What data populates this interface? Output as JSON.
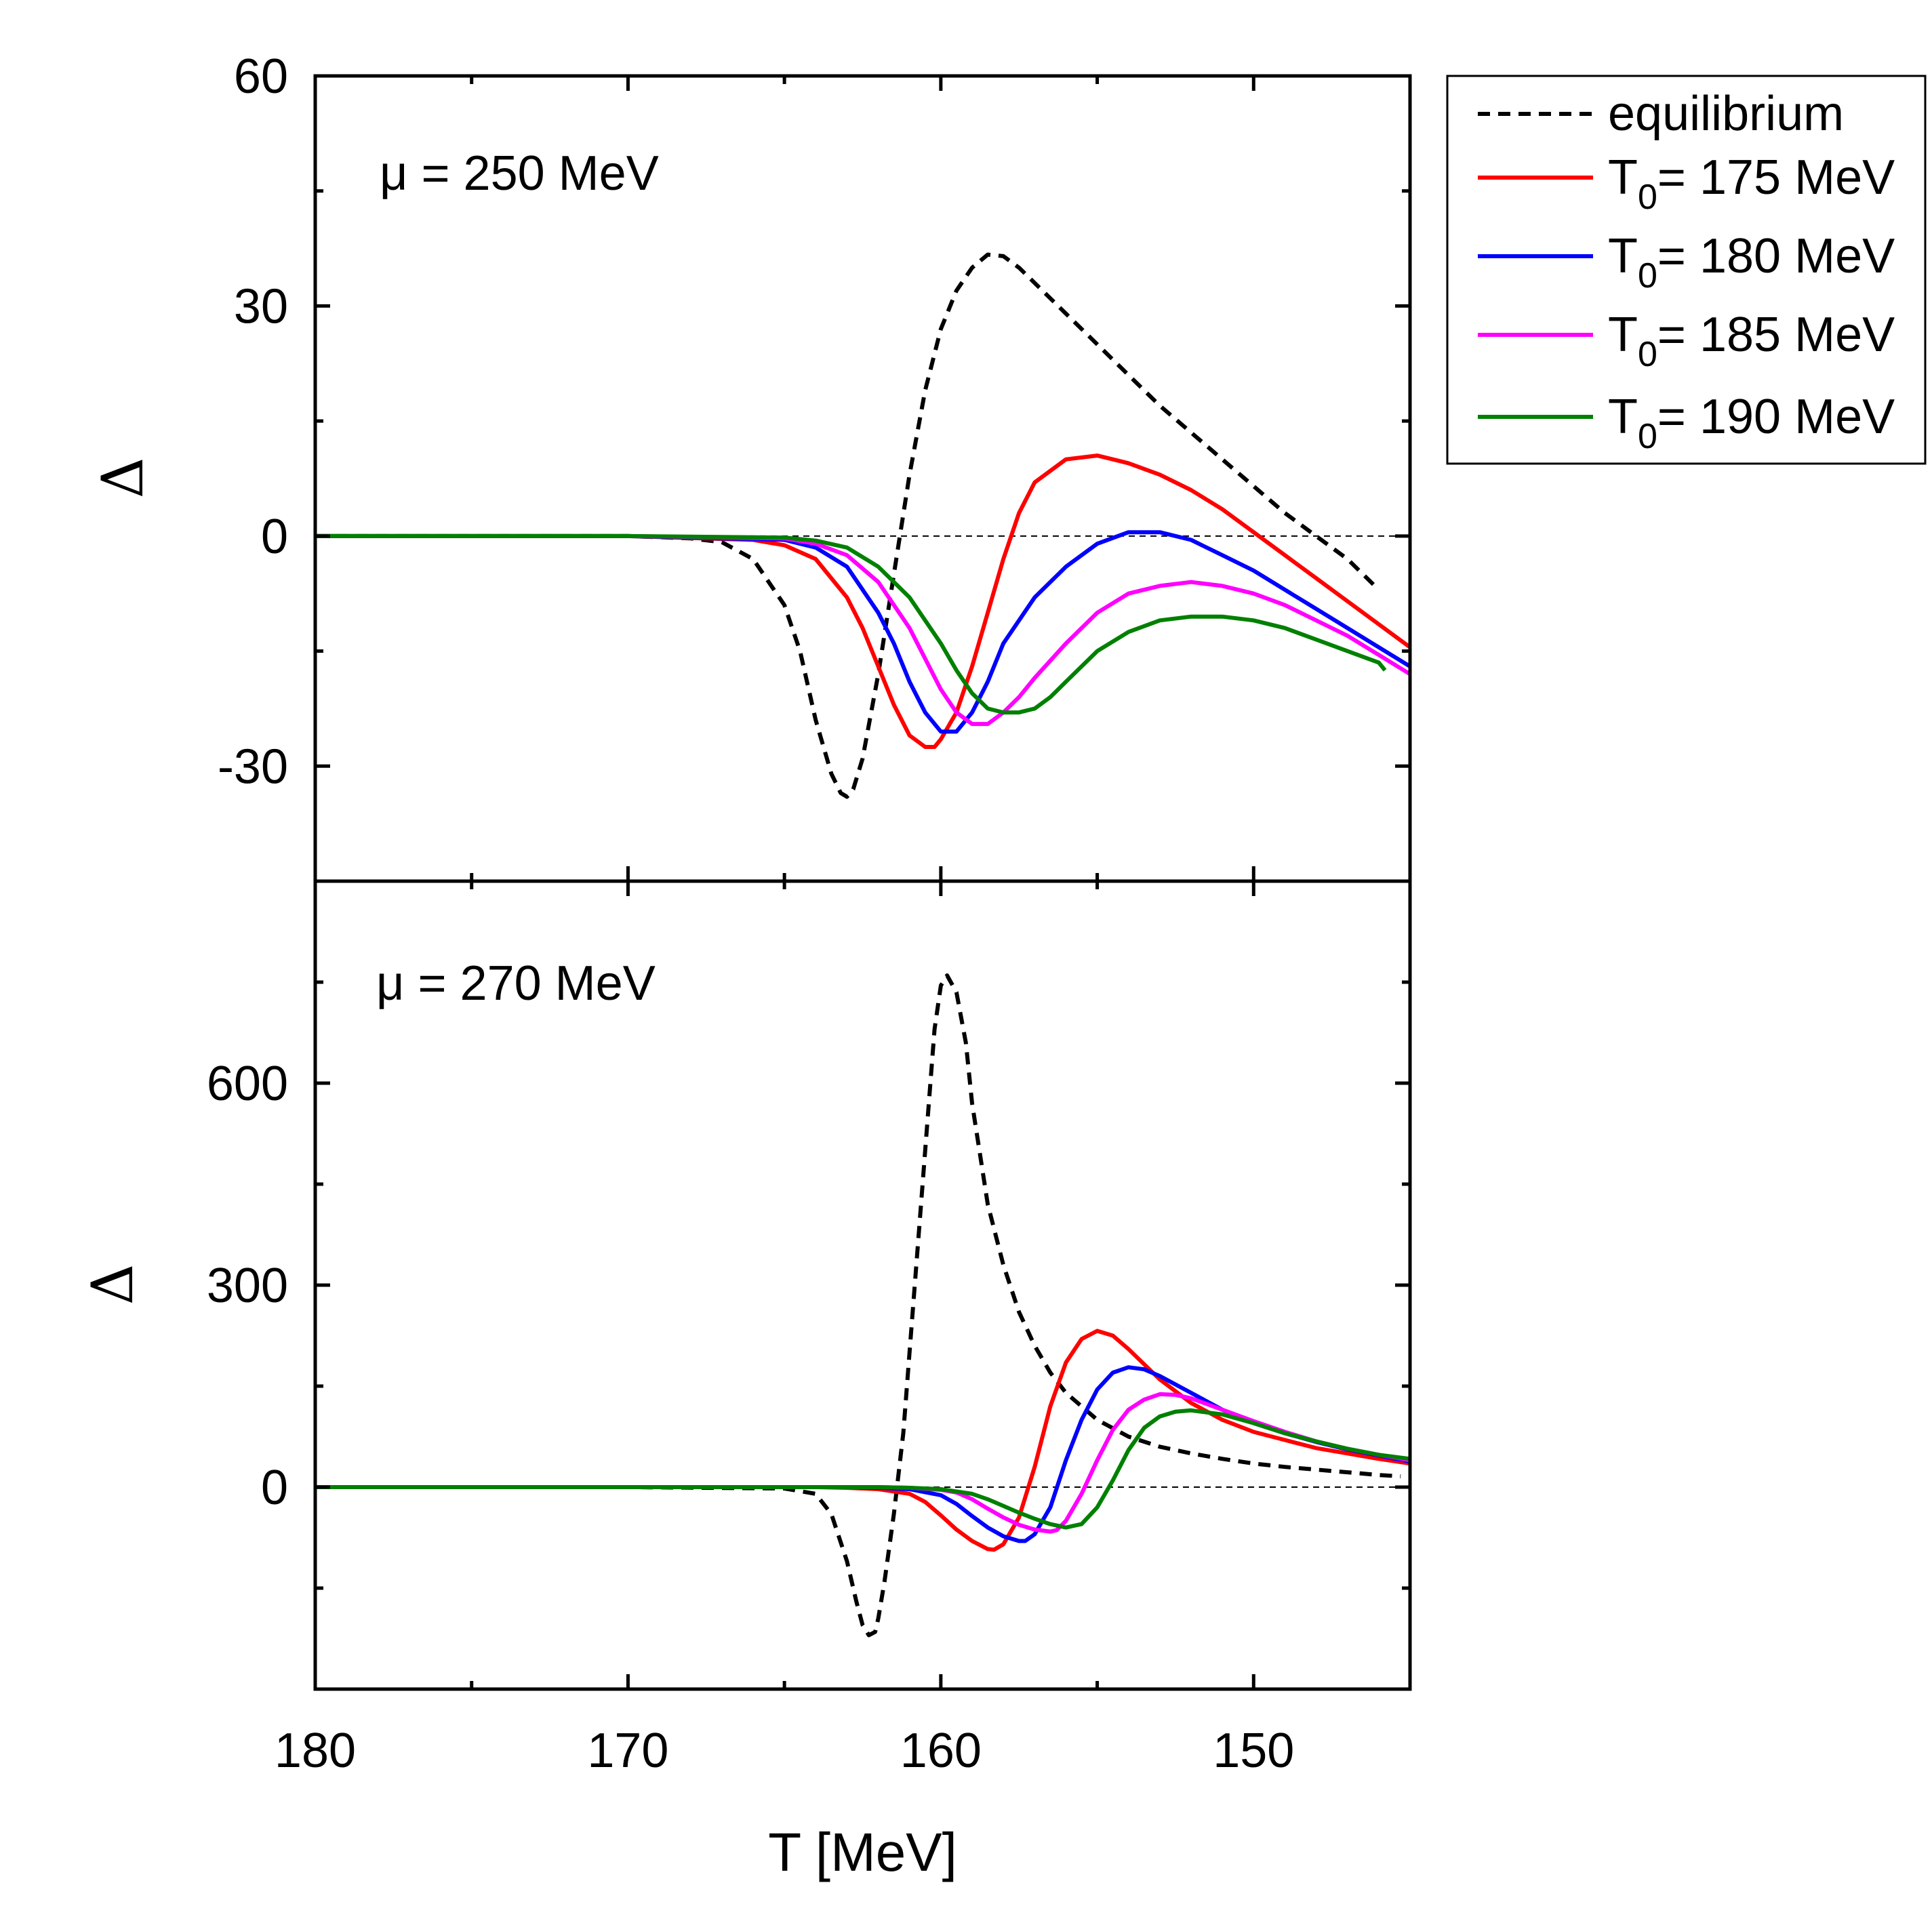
{
  "chart_data": [
    {
      "type": "line",
      "panel": "top",
      "annotation": "μ = 250 MeV",
      "ylabel": "Δ",
      "xlabel": "",
      "xlim": [
        180,
        145
      ],
      "ylim": [
        -45,
        60
      ],
      "yticks": [
        -30,
        0,
        30,
        60
      ],
      "yticks_minor": [
        -15,
        15,
        45
      ],
      "reference_line": 0,
      "series": [
        {
          "name": "equilibrium",
          "color": "#000000",
          "dash": "dashed",
          "x": [
            180,
            170,
            168,
            167,
            166,
            165,
            164.5,
            164,
            163.5,
            163.2,
            163,
            162.8,
            162.5,
            162,
            161.5,
            161,
            160.5,
            160,
            159.5,
            159,
            158.5,
            158,
            157.5,
            157,
            156,
            155,
            154,
            153,
            152,
            151,
            150,
            149,
            148,
            147,
            146
          ],
          "y": [
            0,
            0,
            -0.3,
            -0.8,
            -3,
            -9,
            -15,
            -24,
            -31,
            -33.5,
            -34,
            -33,
            -29,
            -18,
            -5,
            8,
            19,
            27,
            32,
            35,
            36.7,
            36.5,
            35,
            33,
            29,
            25,
            21,
            17,
            13.5,
            10,
            6.5,
            3,
            0,
            -3,
            -7
          ]
        },
        {
          "name": "T0= 175 MeV",
          "color": "#ff0000",
          "dash": "solid",
          "x": [
            180,
            170,
            166,
            165,
            164,
            163,
            162.5,
            162,
            161.5,
            161,
            160.5,
            160.2,
            160,
            159.5,
            159,
            158.5,
            158,
            157.5,
            157,
            156,
            155,
            154.5,
            154,
            153,
            152,
            151,
            150,
            149,
            148,
            147,
            146,
            145
          ],
          "y": [
            0,
            0,
            -0.5,
            -1.2,
            -3,
            -8,
            -12,
            -17,
            -22,
            -26,
            -27.5,
            -27.5,
            -26.5,
            -23,
            -17,
            -10,
            -3,
            3,
            7,
            10,
            10.5,
            10,
            9.5,
            8,
            6,
            3.5,
            0.5,
            -2.5,
            -5.5,
            -8.5,
            -11.5,
            -14.5
          ]
        },
        {
          "name": "T0= 180 MeV",
          "color": "#0000ff",
          "dash": "solid",
          "x": [
            180,
            170,
            165,
            164,
            163,
            162,
            161.5,
            161,
            160.5,
            160,
            159.5,
            159,
            158.5,
            158,
            157,
            156,
            155,
            154,
            153,
            152,
            151,
            150,
            149,
            148,
            147,
            146,
            145
          ],
          "y": [
            0,
            0,
            -0.5,
            -1.5,
            -4,
            -10,
            -14,
            -19,
            -23,
            -25.5,
            -25.5,
            -23,
            -19,
            -14,
            -8,
            -4,
            -1,
            0.5,
            0.5,
            -0.5,
            -2.5,
            -4.5,
            -7,
            -9.5,
            -12,
            -14.5,
            -17
          ]
        },
        {
          "name": "T0= 185 MeV",
          "color": "#ff00ff",
          "dash": "solid",
          "x": [
            180,
            170,
            165,
            164,
            163,
            162,
            161,
            160.5,
            160,
            159.5,
            159,
            158.5,
            158,
            157.5,
            157,
            156,
            155,
            154,
            153,
            152,
            151,
            150,
            149,
            148,
            147,
            146,
            145
          ],
          "y": [
            0,
            0,
            -0.3,
            -1,
            -2.5,
            -6,
            -12,
            -16,
            -20,
            -23,
            -24.5,
            -24.5,
            -23,
            -21,
            -18.5,
            -14,
            -10,
            -7.5,
            -6.5,
            -6,
            -6.5,
            -7.5,
            -9,
            -11,
            -13,
            -15.5,
            -18
          ]
        },
        {
          "name": "T0= 190 MeV",
          "color": "#008000",
          "dash": "solid",
          "x": [
            180,
            170,
            165,
            164,
            163,
            162,
            161,
            160,
            159.5,
            159,
            158.5,
            158,
            157.5,
            157,
            156.5,
            156,
            155,
            154,
            153,
            152,
            151,
            150,
            149,
            148,
            147,
            146,
            145.8
          ],
          "y": [
            0,
            0,
            -0.2,
            -0.6,
            -1.5,
            -4,
            -8,
            -14,
            -17.5,
            -20.5,
            -22.5,
            -23,
            -23,
            -22.5,
            -21,
            -19,
            -15,
            -12.5,
            -11,
            -10.5,
            -10.5,
            -11,
            -12,
            -13.5,
            -15,
            -16.5,
            -17.5
          ]
        }
      ]
    },
    {
      "type": "line",
      "panel": "bottom",
      "annotation": "μ = 270 MeV",
      "ylabel": "Δ",
      "xlabel": "T [MeV]",
      "xlim": [
        180,
        145
      ],
      "ylim": [
        -300,
        900
      ],
      "xticks": [
        180,
        170,
        160,
        150
      ],
      "xticks_minor": [
        175,
        165,
        155
      ],
      "yticks": [
        0,
        300,
        600
      ],
      "yticks_minor": [
        -150,
        150,
        450,
        750
      ],
      "reference_line": 0,
      "series": [
        {
          "name": "equilibrium",
          "color": "#000000",
          "dash": "dashed",
          "x": [
            180,
            170,
            165,
            164,
            163.5,
            163,
            162.7,
            162.5,
            162.3,
            162.1,
            162,
            161.8,
            161.5,
            161.2,
            161,
            160.7,
            160.4,
            160.2,
            160,
            159.8,
            159.5,
            159.2,
            159,
            158.5,
            158,
            157.5,
            157,
            156.5,
            156,
            155,
            154,
            153,
            152,
            151,
            150,
            149,
            148,
            147,
            146,
            145.3
          ],
          "y": [
            0,
            0,
            -2,
            -10,
            -40,
            -110,
            -170,
            -205,
            -220,
            -215,
            -195,
            -140,
            -40,
            80,
            200,
            380,
            560,
            680,
            745,
            760,
            735,
            660,
            570,
            420,
            330,
            260,
            210,
            170,
            140,
            100,
            75,
            60,
            50,
            42,
            35,
            30,
            26,
            22,
            18,
            16
          ]
        },
        {
          "name": "T0= 175 MeV",
          "color": "#ff0000",
          "dash": "solid",
          "x": [
            180,
            170,
            164,
            163,
            162,
            161,
            160.5,
            160,
            159.5,
            159,
            158.5,
            158.3,
            158,
            157.5,
            157,
            156.5,
            156,
            155.5,
            155,
            154.5,
            154,
            153,
            152,
            151,
            150,
            149,
            148,
            147,
            146,
            145
          ],
          "y": [
            0,
            0,
            0,
            -1,
            -3,
            -10,
            -22,
            -42,
            -63,
            -80,
            -92,
            -93,
            -85,
            -45,
            30,
            120,
            185,
            220,
            232,
            225,
            205,
            160,
            125,
            100,
            82,
            70,
            58,
            50,
            42,
            35
          ]
        },
        {
          "name": "T0= 180 MeV",
          "color": "#0000ff",
          "dash": "solid",
          "x": [
            180,
            170,
            163,
            162,
            161,
            160,
            159.5,
            159,
            158.5,
            158,
            157.5,
            157.3,
            157,
            156.5,
            156,
            155.5,
            155,
            154.5,
            154,
            153.5,
            153,
            152,
            151,
            150,
            149,
            148,
            147,
            146,
            145
          ],
          "y": [
            0,
            0,
            0,
            -1,
            -3,
            -12,
            -25,
            -43,
            -60,
            -73,
            -80,
            -80,
            -70,
            -30,
            40,
            100,
            145,
            170,
            178,
            175,
            165,
            140,
            115,
            95,
            80,
            67,
            56,
            47,
            38
          ]
        },
        {
          "name": "T0= 185 MeV",
          "color": "#ff00ff",
          "dash": "solid",
          "x": [
            180,
            170,
            162,
            161,
            160,
            159.5,
            159,
            158.5,
            158,
            157.5,
            157,
            156.5,
            156.3,
            156,
            155.5,
            155,
            154.5,
            154,
            153.5,
            153,
            152.5,
            152,
            151,
            150,
            149,
            148,
            147,
            146,
            145
          ],
          "y": [
            0,
            0,
            0,
            -1,
            -4,
            -8,
            -18,
            -32,
            -45,
            -56,
            -63,
            -66,
            -64,
            -50,
            -10,
            40,
            85,
            115,
            130,
            138,
            137,
            132,
            115,
            98,
            82,
            68,
            57,
            48,
            40
          ]
        },
        {
          "name": "T0= 190 MeV",
          "color": "#008000",
          "dash": "solid",
          "x": [
            180,
            170,
            162,
            161,
            160,
            159,
            158.5,
            158,
            157.5,
            157,
            156.5,
            156,
            155.5,
            155,
            154.5,
            154,
            153.5,
            153,
            152.5,
            152,
            151,
            150,
            149,
            148,
            147,
            146,
            145
          ],
          "y": [
            0,
            0,
            0,
            -1,
            -3,
            -10,
            -18,
            -28,
            -38,
            -47,
            -55,
            -60,
            -55,
            -30,
            10,
            55,
            88,
            105,
            112,
            114,
            108,
            95,
            80,
            68,
            57,
            48,
            42
          ]
        }
      ]
    }
  ],
  "legend": {
    "items": [
      {
        "label": "equilibrium",
        "prefix": "",
        "sub": "",
        "suffix": ""
      },
      {
        "label": "T0= 175 MeV",
        "prefix": "T",
        "sub": "0",
        "suffix": "= 175 MeV"
      },
      {
        "label": "T0= 180 MeV",
        "prefix": "T",
        "sub": "0",
        "suffix": "= 180 MeV"
      },
      {
        "label": "T0= 185 MeV",
        "prefix": "T",
        "sub": "0",
        "suffix": "= 185 MeV"
      },
      {
        "label": "T0= 190 MeV",
        "prefix": "T",
        "sub": "0",
        "suffix": "= 190 MeV"
      }
    ],
    "placement": "outside-right-top"
  }
}
